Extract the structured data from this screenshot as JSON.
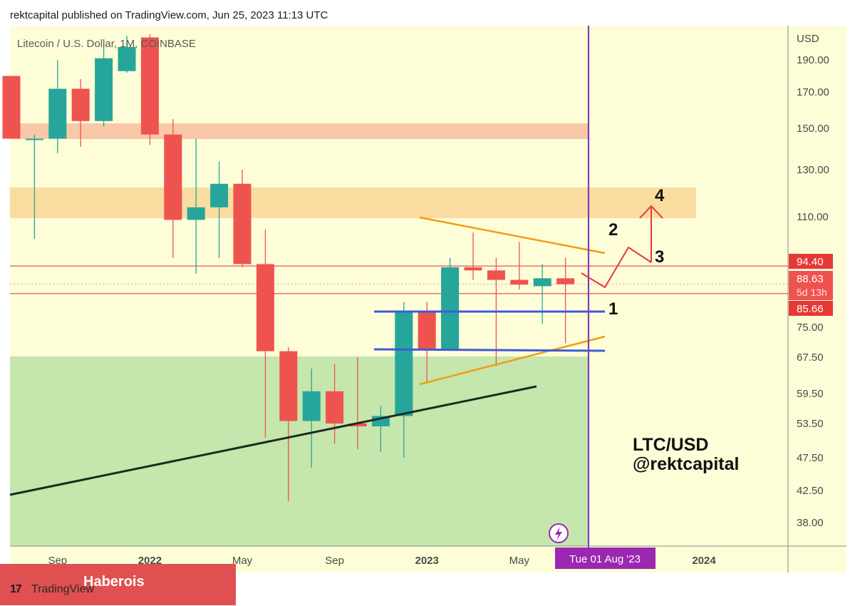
{
  "header": {
    "published_line": "rektcapital published on TradingView.com, Jun 25, 2023 11:13 UTC"
  },
  "watermark": {
    "logo": "17",
    "tradingview": "TradingView",
    "brand": "Haberois"
  },
  "chart_data": {
    "type": "candlestick",
    "symbol_title": "Litecoin / U.S. Dollar, 1M, COINBASE",
    "currency_label": "USD",
    "y_ticks": [
      "190.00",
      "170.00",
      "150.00",
      "130.00",
      "110.00",
      "75.00",
      "67.50",
      "59.50",
      "53.50",
      "47.50",
      "42.50",
      "38.00"
    ],
    "y_tick_values": [
      190,
      170,
      150,
      130,
      110,
      75,
      67.5,
      59.5,
      53.5,
      47.5,
      42.5,
      38
    ],
    "x_ticks": [
      {
        "label": "Sep",
        "index": 2,
        "bold": false
      },
      {
        "label": "2022",
        "index": 6,
        "bold": true
      },
      {
        "label": "May",
        "index": 10,
        "bold": false
      },
      {
        "label": "Sep",
        "index": 14,
        "bold": false
      },
      {
        "label": "2023",
        "index": 18,
        "bold": true
      },
      {
        "label": "May",
        "index": 22,
        "bold": false
      },
      {
        "label": "2024",
        "index": 30,
        "bold": true
      }
    ],
    "candles": [
      {
        "o": 180,
        "h": 180,
        "l": 145,
        "c": 145
      },
      {
        "o": 145,
        "h": 147,
        "l": 103,
        "c": 145
      },
      {
        "o": 145,
        "h": 190,
        "l": 138,
        "c": 172
      },
      {
        "o": 172,
        "h": 178,
        "l": 141,
        "c": 154
      },
      {
        "o": 154,
        "h": 200,
        "l": 151,
        "c": 191
      },
      {
        "o": 183,
        "h": 205,
        "l": 182,
        "c": 198
      },
      {
        "o": 204,
        "h": 206,
        "l": 142,
        "c": 147
      },
      {
        "o": 147,
        "h": 155,
        "l": 97,
        "c": 109
      },
      {
        "o": 109,
        "h": 145,
        "l": 92,
        "c": 114
      },
      {
        "o": 114,
        "h": 134,
        "l": 97,
        "c": 124
      },
      {
        "o": 124,
        "h": 130,
        "l": 94,
        "c": 95
      },
      {
        "o": 95,
        "h": 106,
        "l": 51,
        "c": 69
      },
      {
        "o": 69,
        "h": 70,
        "l": 41,
        "c": 54
      },
      {
        "o": 54,
        "h": 65,
        "l": 46,
        "c": 60
      },
      {
        "o": 60,
        "h": 66,
        "l": 50,
        "c": 53.5
      },
      {
        "o": 53.5,
        "h": 67.5,
        "l": 49,
        "c": 53
      },
      {
        "o": 53,
        "h": 57,
        "l": 48.5,
        "c": 55
      },
      {
        "o": 55,
        "h": 83,
        "l": 47.5,
        "c": 80
      },
      {
        "o": 80,
        "h": 83,
        "l": 62,
        "c": 69.5
      },
      {
        "o": 69.5,
        "h": 97,
        "l": 69.5,
        "c": 94
      },
      {
        "o": 94,
        "h": 105,
        "l": 90,
        "c": 93
      },
      {
        "o": 93,
        "h": 97,
        "l": 65.5,
        "c": 90
      },
      {
        "o": 90,
        "h": 102,
        "l": 87,
        "c": 88.5
      },
      {
        "o": 88,
        "h": 95,
        "l": 76,
        "c": 90.5
      },
      {
        "o": 90.5,
        "h": 97,
        "l": 71,
        "c": 88.63
      }
    ],
    "price_labels": [
      {
        "text": "94.40",
        "value": 94.4,
        "color": "#e53935"
      },
      {
        "text": "88.63",
        "value": 88.63,
        "color": "#ef5350",
        "sub": "5d 13h"
      },
      {
        "text": "85.66",
        "value": 85.66,
        "color": "#e53935"
      }
    ],
    "date_marker": {
      "label": "Tue 01 Aug '23",
      "index": 25,
      "color": "#9c27b0"
    },
    "annotations": [
      "1",
      "2",
      "3",
      "4"
    ],
    "title_line1": "LTC/USD",
    "title_line2": "@rektcapital",
    "colors": {
      "up": "#26a69a",
      "down": "#ef5350",
      "background": "#fdfdd8",
      "support_zone": "#c5e6ad",
      "resistance_band_upper": "#f8c8a8",
      "resistance_band_lower": "#fbdca0",
      "triangle": "#f39c12",
      "range_lines": "#3d5bd9",
      "trendline": "#1e2a1e",
      "vertical_line": "#7e3fb8",
      "horizontal_red": "#e57373",
      "arrows": "#e53935"
    }
  }
}
